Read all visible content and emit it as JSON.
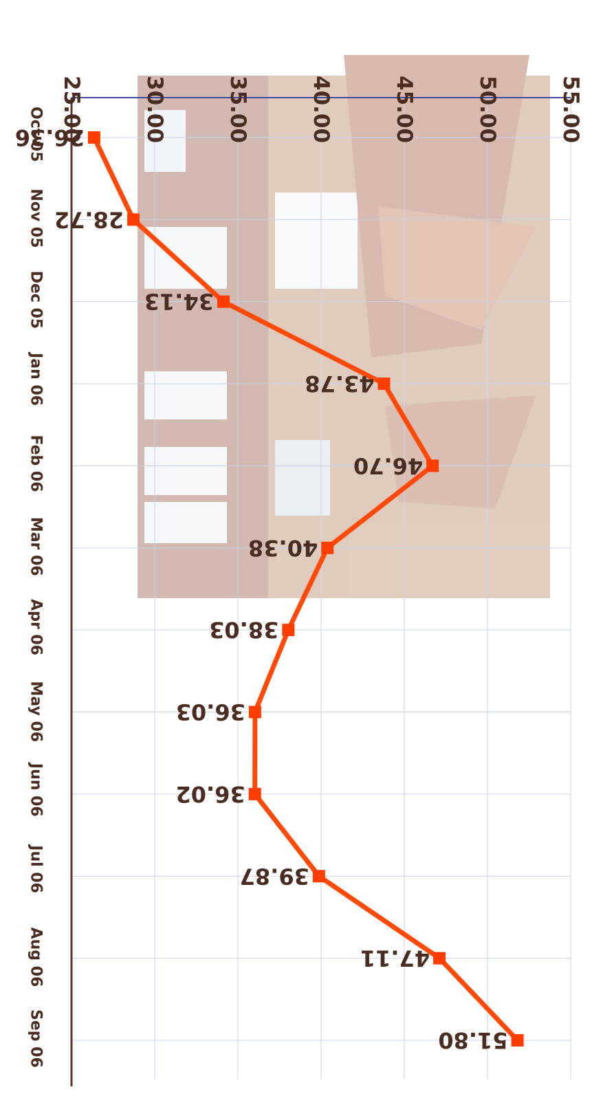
{
  "chart_data": {
    "type": "line",
    "title": "",
    "xlabel": "",
    "ylabel": "",
    "categories": [
      "Oct 05",
      "Nov 05",
      "Dec 05",
      "Jan 06",
      "Feb 06",
      "Mar 06",
      "Apr 06",
      "May 06",
      "Jun 06",
      "Jul 06",
      "Aug 06",
      "Sep 06"
    ],
    "values": [
      26.36,
      28.72,
      34.13,
      43.78,
      46.7,
      40.38,
      38.03,
      36.03,
      36.02,
      39.87,
      47.11,
      51.8
    ],
    "data_labels": [
      "26.36",
      "28.72",
      "34.13",
      "43.78",
      "46.70",
      "40.38",
      "38.03",
      "36.03",
      "36.02",
      "39.87",
      "47.11",
      "51.80"
    ],
    "y_ticks": [
      "25.00",
      "30.00",
      "35.00",
      "40.00",
      "45.00",
      "50.00",
      "55.00"
    ],
    "ylim": [
      25,
      55
    ],
    "grid": true,
    "legend": "none",
    "orientation": "rotated 90 degrees clockwise",
    "colors": {
      "line": "#ff4a0a",
      "marker": "#ff3d00",
      "text": "#4a2d22",
      "axis": "#5a3a2c",
      "grid": "#c9d3e8",
      "top_axis": "#3f4aa0"
    }
  }
}
